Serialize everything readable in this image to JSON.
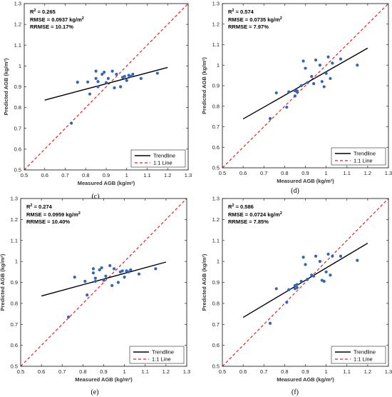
{
  "chart_data": [
    {
      "type": "scatter",
      "caption": "(c)",
      "stats": [
        "R",
        "2",
        " = 0.265",
        "RMSE = 0.0937 kg/m",
        "2",
        "RRMSE = 10.17%"
      ],
      "xlabel": "Measured AGB (kg/m²)",
      "ylabel": "Predicted AGB (kg/m²)",
      "xlim": [
        0.5,
        1.3
      ],
      "ylim": [
        0.5,
        1.3
      ],
      "ticks": [
        "0.5",
        "0.6",
        "0.7",
        "0.8",
        "0.9",
        "1",
        "1.1",
        "1.2",
        "1.3"
      ],
      "legend": {
        "trend": "Trendline",
        "one_to_one": "1:1 Line",
        "placement": "bottom-right"
      },
      "trendline": {
        "x": [
          0.6,
          1.2
        ],
        "y": [
          0.836,
          0.993
        ]
      },
      "points": {
        "x": [
          0.73,
          0.76,
          0.81,
          0.82,
          0.85,
          0.85,
          0.86,
          0.86,
          0.88,
          0.89,
          0.9,
          0.91,
          0.93,
          0.94,
          0.95,
          0.97,
          0.98,
          0.99,
          1.0,
          1.01,
          1.02,
          1.03,
          1.07,
          1.15
        ],
        "y": [
          0.725,
          0.922,
          0.923,
          0.865,
          0.975,
          0.94,
          0.925,
          0.9,
          0.96,
          0.97,
          0.92,
          0.94,
          0.975,
          0.895,
          0.96,
          0.9,
          0.945,
          0.95,
          0.93,
          0.955,
          0.95,
          0.96,
          0.94,
          0.965
        ]
      }
    },
    {
      "type": "scatter",
      "caption": "(d)",
      "stats": [
        "R",
        "2",
        " = 0.574",
        "RMSE = 0.0735 kg/m",
        "2",
        "RRMSE = 7.97%"
      ],
      "xlabel": "Measured AGB (kg/m²)",
      "ylabel": "Predicted AGB (kg/m²)",
      "xlim": [
        0.5,
        1.3
      ],
      "ylim": [
        0.5,
        1.3
      ],
      "ticks": [
        "0.5",
        "0.6",
        "0.7",
        "0.8",
        "0.9",
        "1",
        "1.1",
        "1.2",
        "1.3"
      ],
      "legend": {
        "trend": "Trendline",
        "one_to_one": "1:1 Line",
        "placement": "bottom-right"
      },
      "trendline": {
        "x": [
          0.6,
          1.2
        ],
        "y": [
          0.738,
          1.083
        ]
      },
      "points": {
        "x": [
          0.73,
          0.76,
          0.81,
          0.82,
          0.85,
          0.85,
          0.86,
          0.86,
          0.88,
          0.89,
          0.9,
          0.91,
          0.93,
          0.94,
          0.95,
          0.97,
          0.98,
          0.99,
          1.0,
          1.01,
          1.02,
          1.03,
          1.07,
          1.15
        ],
        "y": [
          0.74,
          0.865,
          0.795,
          0.87,
          0.875,
          0.85,
          0.87,
          0.875,
          0.9,
          1.02,
          0.985,
          0.915,
          0.945,
          0.91,
          1.025,
          1.0,
          0.92,
          0.895,
          0.96,
          1.04,
          0.935,
          1.01,
          1.03,
          1.0
        ]
      }
    },
    {
      "type": "scatter",
      "caption": "(e)",
      "stats": [
        "R",
        "2",
        " = 0.274",
        "RMSE = 0.0959 kg/m",
        "2",
        "RRMSE = 10.40%"
      ],
      "xlabel": "Measured AGB (kg/m²)",
      "ylabel": "Predicted AGB (kg/m²)",
      "xlim": [
        0.5,
        1.3
      ],
      "ylim": [
        0.5,
        1.3
      ],
      "ticks": [
        "0.5",
        "0.6",
        "0.7",
        "0.8",
        "0.9",
        "1",
        "1.1",
        "1.2",
        "1.3"
      ],
      "legend": {
        "trend": "Trendline",
        "one_to_one": "1:1 Line",
        "placement": "bottom-right"
      },
      "trendline": {
        "x": [
          0.6,
          1.2
        ],
        "y": [
          0.835,
          0.997
        ]
      },
      "points": {
        "x": [
          0.73,
          0.76,
          0.81,
          0.82,
          0.85,
          0.85,
          0.86,
          0.86,
          0.88,
          0.89,
          0.9,
          0.91,
          0.93,
          0.94,
          0.95,
          0.97,
          0.98,
          0.99,
          1.0,
          1.01,
          1.02,
          1.03,
          1.07,
          1.15
        ],
        "y": [
          0.735,
          0.925,
          0.905,
          0.84,
          0.965,
          0.945,
          0.92,
          0.905,
          0.96,
          0.97,
          0.91,
          0.93,
          0.98,
          0.885,
          0.965,
          0.9,
          0.95,
          0.955,
          0.925,
          0.955,
          0.95,
          0.96,
          0.94,
          0.965
        ]
      }
    },
    {
      "type": "scatter",
      "caption": "(f)",
      "stats": [
        "R",
        "2",
        " = 0.586",
        "RMSE = 0.0724 kg/m",
        "2",
        "RRMSE = 7.85%"
      ],
      "xlabel": "Measured AGB (kg/m²)",
      "ylabel": "Predicted AGB (kg/m²)",
      "xlim": [
        0.5,
        1.3
      ],
      "ylim": [
        0.5,
        1.3
      ],
      "ticks": [
        "0.5",
        "0.6",
        "0.7",
        "0.8",
        "0.9",
        "1",
        "1.1",
        "1.2",
        "1.3"
      ],
      "legend": {
        "trend": "Trendline",
        "one_to_one": "1:1 Line",
        "placement": "bottom-right"
      },
      "trendline": {
        "x": [
          0.6,
          1.2
        ],
        "y": [
          0.733,
          1.087
        ]
      },
      "points": {
        "x": [
          0.73,
          0.76,
          0.81,
          0.82,
          0.85,
          0.85,
          0.86,
          0.86,
          0.88,
          0.89,
          0.9,
          0.91,
          0.93,
          0.94,
          0.95,
          0.97,
          0.98,
          0.99,
          1.0,
          1.01,
          1.02,
          1.03,
          1.07,
          1.15
        ],
        "y": [
          0.705,
          0.87,
          0.805,
          0.865,
          0.87,
          0.885,
          0.875,
          0.89,
          0.905,
          1.02,
          0.985,
          0.915,
          0.935,
          0.93,
          1.025,
          1.0,
          0.91,
          0.905,
          0.95,
          1.035,
          0.935,
          1.025,
          1.025,
          1.005
        ]
      }
    }
  ],
  "colors": {
    "points": "#3465b4",
    "trendline": "#000000",
    "one_to_one": "#e8231e",
    "axis": "#262626"
  }
}
